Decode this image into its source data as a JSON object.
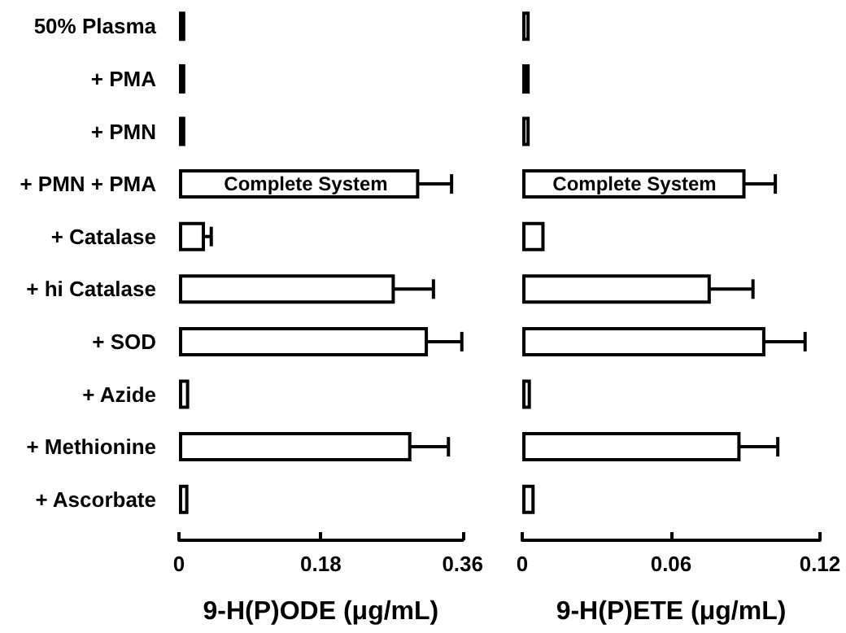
{
  "chart_data": [
    {
      "type": "bar",
      "orientation": "horizontal",
      "xlabel": "9-H(P)ODE (μg/mL)",
      "categories": [
        "50% Plasma",
        "+ PMA",
        "+ PMN",
        "+ PMN + PMA",
        "+ Catalase",
        "+ hi Catalase",
        "+ SOD",
        "+ Azide",
        "+ Methionine",
        "+ Ascorbate"
      ],
      "values": [
        0.008,
        0.008,
        0.008,
        0.305,
        0.033,
        0.274,
        0.316,
        0.013,
        0.295,
        0.012
      ],
      "errors": [
        null,
        null,
        null,
        0.041,
        0.008,
        0.049,
        0.043,
        null,
        0.047,
        null
      ],
      "colors": [
        "#ffffff",
        "#000000",
        "#ffffff",
        "#ffffff",
        "#ffffff",
        "#ffffff",
        "#ffffff",
        "#ffffff",
        "#ffffff",
        "#ffffff"
      ],
      "xlim": [
        0,
        0.36
      ],
      "xticks": [
        0,
        0.18,
        0.36
      ],
      "grid": false,
      "annotations": [
        "Complete System"
      ]
    },
    {
      "type": "bar",
      "orientation": "horizontal",
      "xlabel": "9-H(P)ETE (μg/mL)",
      "categories": [
        null,
        null,
        null,
        null,
        null,
        null,
        null,
        null,
        null,
        null
      ],
      "values": [
        0.003,
        0.003,
        0.003,
        0.09,
        0.009,
        0.076,
        0.098,
        0.0035,
        0.088,
        0.005
      ],
      "errors": [
        null,
        null,
        null,
        0.012,
        null,
        0.017,
        0.016,
        null,
        0.015,
        null
      ],
      "colors": [
        "#ffffff",
        "#000000",
        "#ffffff",
        "#ffffff",
        "#ffffff",
        "#ffffff",
        "#ffffff",
        "#ffffff",
        "#ffffff",
        "#ffffff"
      ],
      "xlim": [
        0,
        0.12
      ],
      "xticks": [
        0,
        0.06,
        0.12
      ],
      "grid": false,
      "tick_labels": "x",
      "annotations": [
        "Complete System"
      ]
    }
  ]
}
